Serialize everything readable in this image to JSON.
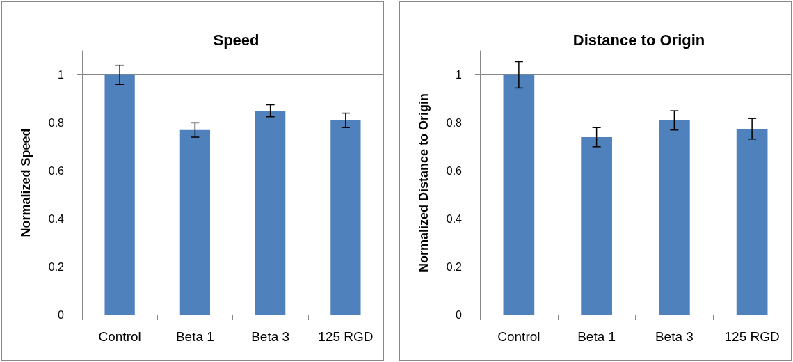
{
  "chart_data": [
    {
      "type": "bar",
      "title": "Speed",
      "ylabel": "Normalized Speed",
      "categories": [
        "Control",
        "Beta 1",
        "Beta 3",
        "125 RGD"
      ],
      "values": [
        1.0,
        0.77,
        0.85,
        0.81
      ],
      "errors": [
        0.04,
        0.03,
        0.025,
        0.03
      ],
      "color": "#4f81bd",
      "ylim": [
        0,
        1.1
      ],
      "yticks": [
        0,
        0.2,
        0.4,
        0.6,
        0.8,
        1
      ],
      "grid": "y"
    },
    {
      "type": "bar",
      "title": "Distance to Origin",
      "ylabel": "Normalized Distance to Origin",
      "categories": [
        "Control",
        "Beta 1",
        "Beta 3",
        "125 RGD"
      ],
      "values": [
        1.0,
        0.74,
        0.81,
        0.775
      ],
      "errors": [
        0.055,
        0.04,
        0.04,
        0.043
      ],
      "color": "#4f81bd",
      "ylim": [
        0,
        1.1
      ],
      "yticks": [
        0,
        0.2,
        0.4,
        0.6,
        0.8,
        1
      ],
      "grid": "y"
    }
  ]
}
